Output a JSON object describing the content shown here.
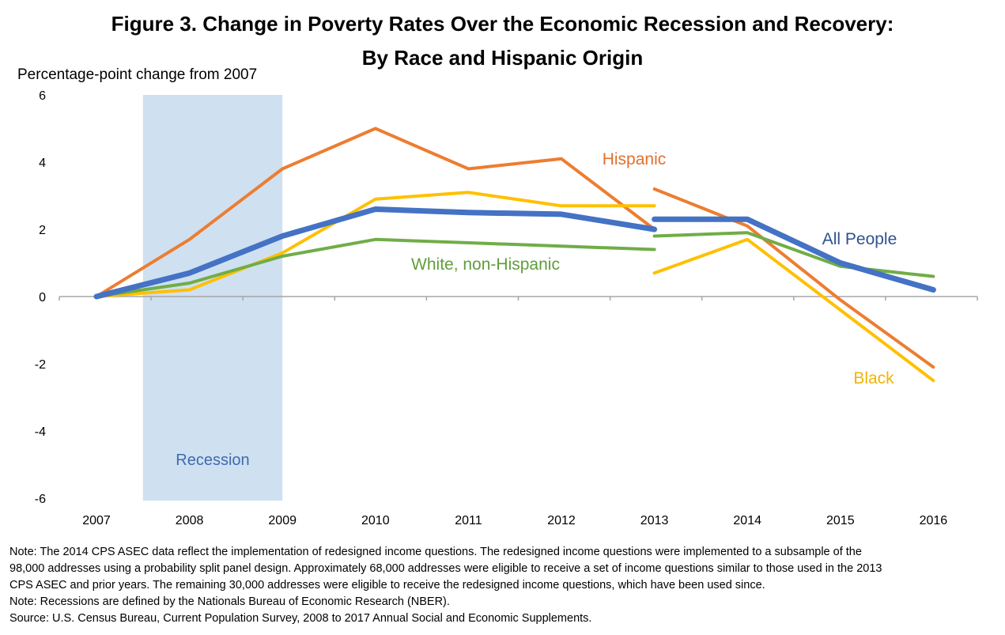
{
  "title_line1": "Figure 3. Change in Poverty Rates Over the Economic Recession and Recovery:",
  "title_line2": "By Race and Hispanic Origin",
  "y_axis_title": "Percentage-point change from 2007",
  "recession_label": "Recession",
  "notes": [
    "Note: The 2014 CPS ASEC data reflect the implementation of redesigned income questions. The redesigned income questions were implemented to a subsample of the",
    "98,000 addresses using a probability split panel design. Approximately 68,000 addresses were eligible to receive a set of income questions similar to those used in the 2013",
    "CPS ASEC and prior years.  The remaining 30,000 addresses were eligible to receive the redesigned income questions, which have been used since.",
    "Note: Recessions are defined by the Nationals Bureau of Economic Research (NBER).",
    "Source: U.S. Census Bureau, Current Population Survey, 2008 to 2017 Annual Social and Economic Supplements."
  ],
  "chart_data": {
    "type": "line",
    "x_categories": [
      "2007",
      "2008",
      "2009",
      "2010",
      "2011",
      "2012",
      "2013",
      "2014",
      "2015",
      "2016"
    ],
    "ylim": [
      -6,
      6
    ],
    "y_ticks": [
      6,
      4,
      2,
      0,
      -2,
      -4,
      -6
    ],
    "y_tick_labels": [
      "6",
      "4",
      "2",
      "0",
      "-2",
      "-4",
      "-6"
    ],
    "grid": false,
    "recession_span": [
      "2007.5",
      "2009"
    ],
    "series": [
      {
        "name": "Hispanic",
        "color": "#ED7D31",
        "segments": [
          [
            [
              "2007",
              0.0
            ],
            [
              "2008",
              1.7
            ],
            [
              "2009",
              3.8
            ],
            [
              "2010",
              5.0
            ],
            [
              "2011",
              3.8
            ],
            [
              "2012",
              4.1
            ],
            [
              "2013",
              2.0
            ]
          ],
          [
            [
              "2013",
              3.2
            ],
            [
              "2014",
              2.1
            ],
            [
              "2015",
              -0.1
            ],
            [
              "2016",
              -2.1
            ]
          ]
        ]
      },
      {
        "name": "Black",
        "color": "#FFC000",
        "segments": [
          [
            [
              "2007",
              0.0
            ],
            [
              "2008",
              0.2
            ],
            [
              "2009",
              1.3
            ],
            [
              "2010",
              2.9
            ],
            [
              "2011",
              3.1
            ],
            [
              "2012",
              2.7
            ],
            [
              "2013",
              2.7
            ]
          ],
          [
            [
              "2013",
              0.7
            ],
            [
              "2014",
              1.7
            ],
            [
              "2015",
              -0.4
            ],
            [
              "2016",
              -2.5
            ]
          ]
        ]
      },
      {
        "name": "White, non-Hispanic",
        "color": "#70AD47",
        "segments": [
          [
            [
              "2007",
              0.0
            ],
            [
              "2008",
              0.4
            ],
            [
              "2009",
              1.2
            ],
            [
              "2010",
              1.7
            ],
            [
              "2011",
              1.6
            ],
            [
              "2012",
              1.5
            ],
            [
              "2013",
              1.4
            ]
          ],
          [
            [
              "2013",
              1.8
            ],
            [
              "2014",
              1.9
            ],
            [
              "2015",
              0.9
            ],
            [
              "2016",
              0.6
            ]
          ]
        ]
      },
      {
        "name": "All People",
        "color": "#4472C4",
        "segments": [
          [
            [
              "2007",
              0.0
            ],
            [
              "2008",
              0.7
            ],
            [
              "2009",
              1.8
            ],
            [
              "2010",
              2.6
            ],
            [
              "2011",
              2.5
            ],
            [
              "2012",
              2.45
            ],
            [
              "2013",
              2.0
            ]
          ],
          [
            [
              "2013",
              2.3
            ],
            [
              "2014",
              2.3
            ],
            [
              "2015",
              1.0
            ],
            [
              "2016",
              0.2
            ]
          ]
        ]
      }
    ]
  }
}
